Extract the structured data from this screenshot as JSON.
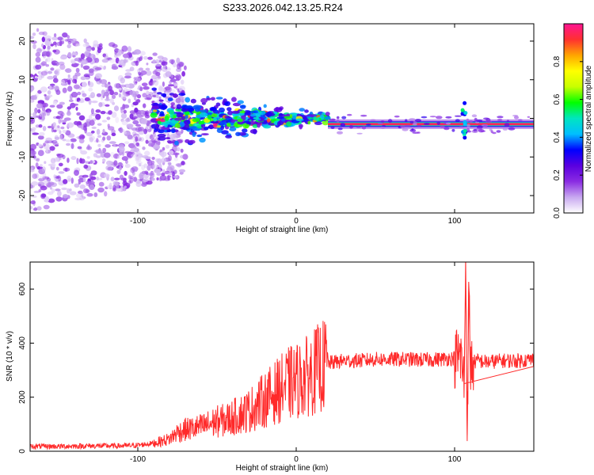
{
  "title": "S233.2026.042.13.25.R24",
  "chart_data": [
    {
      "type": "heatmap",
      "xlabel": "Height of straight line (km)",
      "ylabel": "Frequency (Hz)",
      "xlim": [
        -168,
        150
      ],
      "ylim": [
        -24.5,
        24.5
      ],
      "xticks": [
        -100,
        0,
        100
      ],
      "yticks": [
        -20,
        -10,
        0,
        10,
        20
      ],
      "colorbar": {
        "label": "Normalized spectral amplitude",
        "range": [
          0,
          1
        ],
        "ticks": [
          0.0,
          0.2,
          0.4,
          0.6,
          0.8
        ],
        "colormap": [
          "#ffffff",
          "#c8a8f0",
          "#8a2be2",
          "#5a00e0",
          "#0000ff",
          "#00bfff",
          "#00e5c0",
          "#00ff00",
          "#c8ff00",
          "#ffff00",
          "#ffa500",
          "#ff3030",
          "#ff1493"
        ]
      },
      "features": [
        {
          "name": "noise scatter",
          "x_range": [
            -168,
            -90
          ],
          "frequency_spread_hz": 24,
          "amplitude": 0.15
        },
        {
          "name": "converging band",
          "x_range": [
            -90,
            20
          ],
          "frequency_center_hz": 0,
          "amplitude": 0.35
        },
        {
          "name": "narrow band",
          "x_range": [
            20,
            150
          ],
          "frequency_center_hz": -1.5,
          "amplitude": 0.95
        },
        {
          "name": "spike",
          "x": 106,
          "frequency_spread_hz": 5
        }
      ]
    },
    {
      "type": "line",
      "xlabel": "Height of straight line (km)",
      "ylabel": "SNR (10 * v/v)",
      "xlim": [
        -168,
        150
      ],
      "ylim": [
        0,
        700
      ],
      "xticks": [
        -100,
        0,
        100
      ],
      "yticks": [
        0,
        200,
        400,
        600
      ],
      "series": [
        {
          "name": "SNR",
          "color": "#ff2a2a",
          "x": [
            -168,
            -150,
            -130,
            -110,
            -100,
            -90,
            -80,
            -75,
            -70,
            -60,
            -50,
            -45,
            -40,
            -30,
            -20,
            -15,
            -10,
            -5,
            0,
            5,
            10,
            15,
            20,
            25,
            30,
            40,
            50,
            60,
            70,
            80,
            90,
            100,
            104,
            106,
            107,
            108,
            109,
            110,
            112,
            115,
            120,
            130,
            140,
            150
          ],
          "values": [
            18,
            18,
            20,
            20,
            22,
            30,
            45,
            70,
            80,
            90,
            110,
            115,
            125,
            150,
            190,
            210,
            230,
            250,
            260,
            270,
            290,
            310,
            325,
            330,
            335,
            335,
            340,
            340,
            340,
            338,
            340,
            345,
            350,
            250,
            700,
            60,
            600,
            310,
            330,
            335,
            330,
            335,
            335,
            340
          ]
        }
      ]
    }
  ]
}
